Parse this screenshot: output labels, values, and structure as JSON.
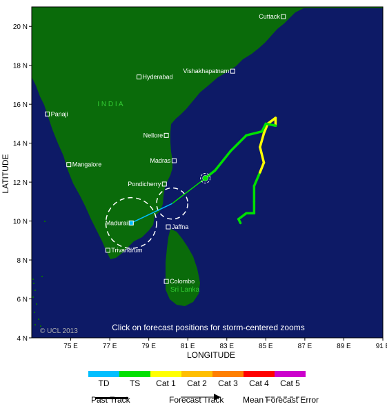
{
  "map": {
    "title_note": "Click on forecast positions for storm-centered zooms",
    "copyright": "© UCL 2013",
    "xlabel": "LONGITUDE",
    "ylabel": "LATITUDE",
    "lon_range": [
      73,
      91
    ],
    "lat_range": [
      4,
      21
    ],
    "x_ticks": [
      "75 E",
      "77 E",
      "79 E",
      "81 E",
      "83 E",
      "85 E",
      "87 E",
      "89 E",
      "91 E"
    ],
    "y_ticks": [
      "20 N",
      "18 N",
      "16 N",
      "14 N",
      "12 N",
      "10 N",
      "8 N",
      "6 N",
      "4 N"
    ],
    "country_label": "I N D I A",
    "srilanka_label": "Sri Lanka",
    "colors": {
      "ocean": "#0d1a66",
      "land": "#0a6b0a",
      "land_label": "#33cc33"
    }
  },
  "cities": [
    {
      "name": "Cuttack",
      "lon": 85.9,
      "lat": 20.5
    },
    {
      "name": "Vishakhapatnam",
      "lon": 83.3,
      "lat": 17.7
    },
    {
      "name": "Hyderabad",
      "lon": 78.5,
      "lat": 17.4
    },
    {
      "name": "Panaji",
      "lon": 73.8,
      "lat": 15.5
    },
    {
      "name": "Nellore",
      "lon": 79.9,
      "lat": 14.4
    },
    {
      "name": "Mangalore",
      "lon": 74.9,
      "lat": 12.9
    },
    {
      "name": "Madras",
      "lon": 80.3,
      "lat": 13.1
    },
    {
      "name": "Pondicherry",
      "lon": 79.8,
      "lat": 11.9
    },
    {
      "name": "Madurai",
      "lon": 78.1,
      "lat": 9.9
    },
    {
      "name": "Jaffna",
      "lon": 80.0,
      "lat": 9.7
    },
    {
      "name": "Trivandrum",
      "lon": 76.9,
      "lat": 8.5
    },
    {
      "name": "Colombo",
      "lon": 79.9,
      "lat": 6.9
    }
  ],
  "track": {
    "past": [
      {
        "lon": 83.7,
        "lat": 9.9,
        "cat": "TS"
      },
      {
        "lon": 83.6,
        "lat": 10.1,
        "cat": "TS"
      },
      {
        "lon": 84.0,
        "lat": 10.4,
        "cat": "TS"
      },
      {
        "lon": 84.4,
        "lat": 10.4,
        "cat": "TS"
      },
      {
        "lon": 84.4,
        "lat": 11.0,
        "cat": "TS"
      },
      {
        "lon": 84.4,
        "lat": 11.8,
        "cat": "TS"
      },
      {
        "lon": 84.7,
        "lat": 12.5,
        "cat": "Cat 1"
      },
      {
        "lon": 84.9,
        "lat": 13.0,
        "cat": "Cat 1"
      },
      {
        "lon": 84.7,
        "lat": 13.8,
        "cat": "Cat 1"
      },
      {
        "lon": 84.9,
        "lat": 14.5,
        "cat": "Cat 1"
      },
      {
        "lon": 85.1,
        "lat": 15.0,
        "cat": "Cat 1"
      },
      {
        "lon": 85.5,
        "lat": 15.3,
        "cat": "Cat 1"
      },
      {
        "lon": 85.5,
        "lat": 14.9,
        "cat": "TS"
      },
      {
        "lon": 85.0,
        "lat": 15.0,
        "cat": "TS"
      },
      {
        "lon": 84.8,
        "lat": 14.6,
        "cat": "TS"
      },
      {
        "lon": 84.0,
        "lat": 14.4,
        "cat": "TS"
      },
      {
        "lon": 83.2,
        "lat": 13.6,
        "cat": "TS"
      },
      {
        "lon": 82.4,
        "lat": 12.6,
        "cat": "TS"
      },
      {
        "lon": 81.9,
        "lat": 12.2,
        "cat": "TS"
      }
    ],
    "forecast": [
      {
        "lon": 81.9,
        "lat": 12.2,
        "cat": "TS"
      },
      {
        "lon": 80.2,
        "lat": 10.9,
        "cat": "TS"
      },
      {
        "lon": 78.1,
        "lat": 9.9,
        "cat": "TD"
      }
    ],
    "error_circles": [
      {
        "lon": 80.2,
        "lat": 10.9,
        "radius_deg": 0.8
      },
      {
        "lon": 78.1,
        "lat": 9.9,
        "radius_deg": 1.3
      }
    ],
    "current_position": {
      "lon": 81.9,
      "lat": 12.2
    }
  },
  "legend": {
    "categories": [
      {
        "label": "TD",
        "color": "#00bfff"
      },
      {
        "label": "TS",
        "color": "#00e000"
      },
      {
        "label": "Cat 1",
        "color": "#ffff00"
      },
      {
        "label": "Cat 2",
        "color": "#ffbf00"
      },
      {
        "label": "Cat 3",
        "color": "#ff7f00"
      },
      {
        "label": "Cat 4",
        "color": "#ff0000"
      },
      {
        "label": "Cat 5",
        "color": "#cc00cc"
      }
    ],
    "past_track_label": "Past Track",
    "forecast_track_label": "Forecast Track",
    "error_label": "Mean Forecast Error"
  }
}
